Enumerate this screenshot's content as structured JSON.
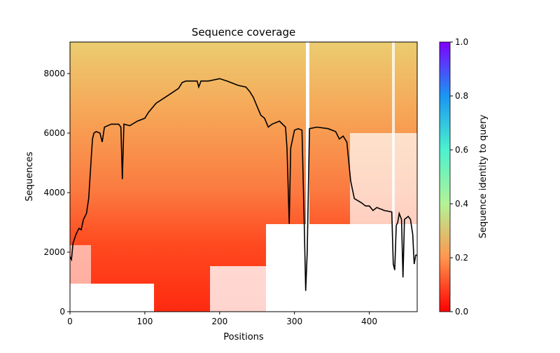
{
  "chart_data": {
    "type": "line",
    "title": "Sequence coverage",
    "xlabel": "Positions",
    "ylabel": "Sequences",
    "x": [
      0,
      2,
      4,
      8,
      12,
      15,
      18,
      22,
      25,
      28,
      30,
      32,
      35,
      40,
      43,
      46,
      55,
      65,
      68,
      70,
      72,
      80,
      90,
      100,
      105,
      115,
      130,
      145,
      150,
      155,
      170,
      172,
      175,
      185,
      200,
      210,
      225,
      235,
      240,
      245,
      250,
      255,
      260,
      265,
      270,
      280,
      288,
      290,
      293,
      295,
      300,
      305,
      310,
      313,
      315,
      317,
      320,
      330,
      345,
      355,
      360,
      365,
      370,
      375,
      380,
      390,
      395,
      400,
      405,
      410,
      420,
      430,
      432,
      434,
      436,
      438,
      440,
      443,
      445,
      447,
      452,
      455,
      458,
      460,
      462,
      464
    ],
    "series": [
      {
        "color": "#000000",
        "values": [
          1850,
          1750,
          2300,
          2600,
          2800,
          2750,
          3100,
          3300,
          3800,
          5000,
          5800,
          6000,
          6050,
          6000,
          5700,
          6200,
          6300,
          6300,
          6200,
          4450,
          6300,
          6250,
          6400,
          6500,
          6700,
          7000,
          7250,
          7500,
          7700,
          7750,
          7750,
          7550,
          7750,
          7750,
          7830,
          7750,
          7600,
          7550,
          7400,
          7200,
          6900,
          6600,
          6500,
          6200,
          6300,
          6400,
          6200,
          5500,
          2950,
          5500,
          6100,
          6150,
          6100,
          3000,
          700,
          2000,
          6150,
          6200,
          6150,
          6050,
          5800,
          5900,
          5700,
          4400,
          3800,
          3650,
          3550,
          3550,
          3400,
          3500,
          3400,
          3350,
          1600,
          1400,
          2900,
          3000,
          3300,
          3100,
          1150,
          3100,
          3200,
          3100,
          2600,
          1600,
          1900,
          1900
        ]
      }
    ],
    "xlim": [
      0,
      464
    ],
    "xticks": [
      0,
      100,
      200,
      300,
      400
    ],
    "ylim": [
      0,
      9060
    ],
    "yticks": [
      0,
      2000,
      4000,
      6000,
      8000
    ],
    "colorbar": {
      "label": "Sequence identity to query",
      "lim": [
        0,
        1
      ],
      "ticks": [
        {
          "value": 0,
          "label": "0.0"
        },
        {
          "value": 0.2,
          "label": "0.2"
        },
        {
          "value": 0.4,
          "label": "0.4"
        },
        {
          "value": 0.6,
          "label": "0.6"
        },
        {
          "value": 0.8,
          "label": "0.8"
        },
        {
          "value": 1,
          "label": "1.0"
        }
      ]
    }
  }
}
